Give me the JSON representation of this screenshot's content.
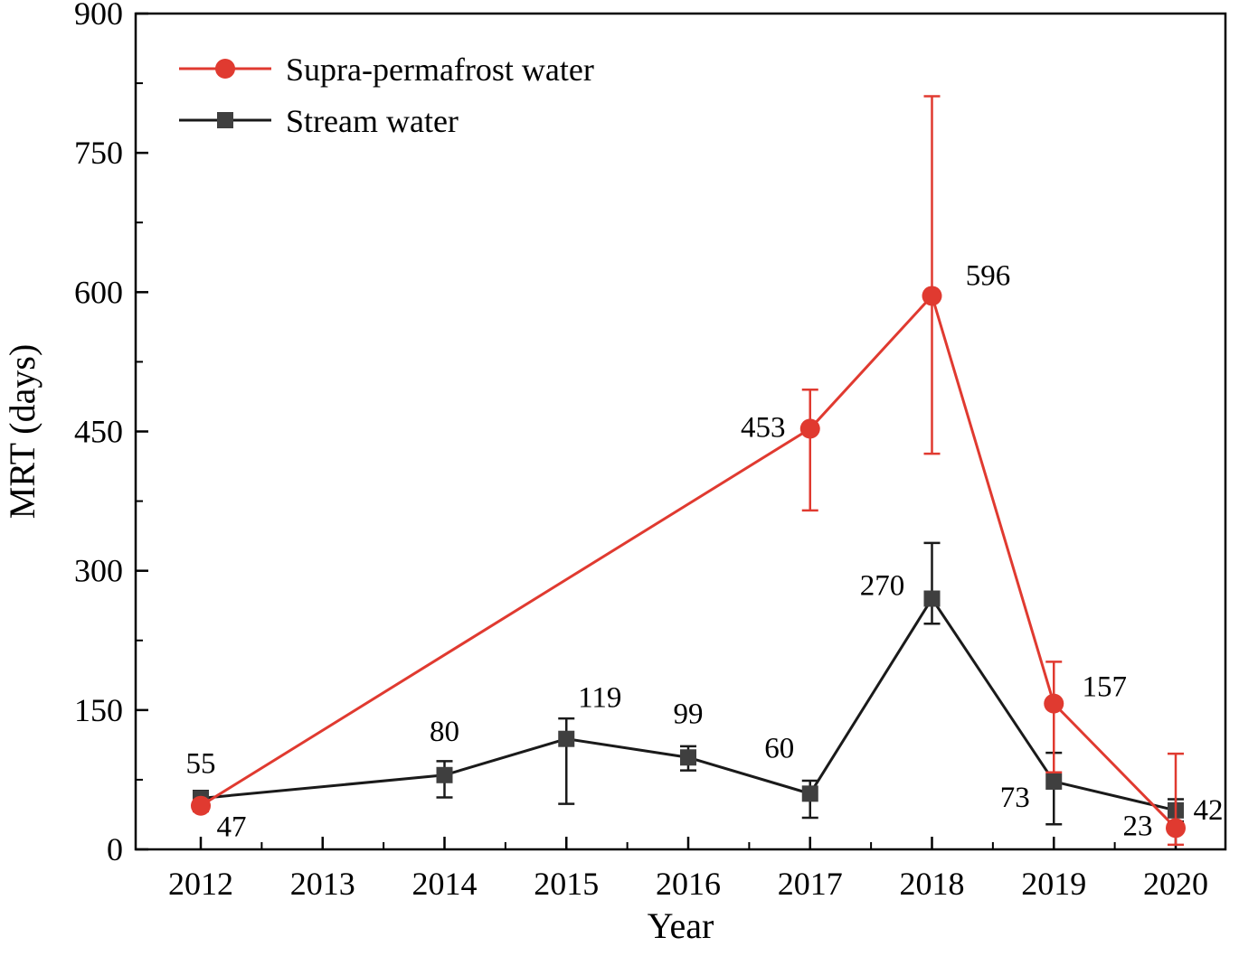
{
  "chart_data": {
    "type": "line",
    "title": "",
    "xlabel": "Year",
    "ylabel": "MRT (days)",
    "x_categories": [
      "2012",
      "2013",
      "2014",
      "2015",
      "2016",
      "2017",
      "2018",
      "2019",
      "2020"
    ],
    "ylim": [
      0,
      900
    ],
    "y_major_ticks": [
      0,
      150,
      300,
      450,
      600,
      750,
      900
    ],
    "y_minor_ticks": [
      75,
      225,
      375,
      525,
      675,
      825
    ],
    "grid": false,
    "legend_position": "top-left-inside",
    "colors": {
      "supra_red": "#e03a30",
      "stream_line": "#1a1a1a",
      "stream_marker": "#3f3f3f",
      "axis": "#000000"
    },
    "series": [
      {
        "name": "Supra-permafrost water",
        "marker": "circle",
        "color": "#e03a30",
        "marker_color": "#e03a30",
        "points": [
          {
            "x": "2012",
            "y": 47,
            "err_up": 6,
            "err_down": 6,
            "label": "47",
            "label_dx": 34,
            "label_dy": 34
          },
          {
            "x": "2017",
            "y": 453,
            "err_up": 42,
            "err_down": 88,
            "label": "453",
            "label_dx": -52,
            "label_dy": 9
          },
          {
            "x": "2018",
            "y": 596,
            "err_up": 215,
            "err_down": 170,
            "label": "596",
            "label_dx": 62,
            "label_dy": -12
          },
          {
            "x": "2019",
            "y": 157,
            "err_up": 45,
            "err_down": 74,
            "label": "157",
            "label_dx": 56,
            "label_dy": -8
          },
          {
            "x": "2020",
            "y": 23,
            "err_up": 80,
            "err_down": 18,
            "label": "23",
            "label_dx": -42,
            "label_dy": 8
          }
        ]
      },
      {
        "name": "Stream water",
        "marker": "square",
        "color": "#1a1a1a",
        "marker_color": "#3f3f3f",
        "points": [
          {
            "x": "2012",
            "y": 55,
            "err_up": 8,
            "err_down": 8,
            "label": "55",
            "label_dx": 0,
            "label_dy": -28
          },
          {
            "x": "2014",
            "y": 80,
            "err_up": 15,
            "err_down": 24,
            "label": "80",
            "label_dx": 0,
            "label_dy": -38
          },
          {
            "x": "2015",
            "y": 119,
            "err_up": 22,
            "err_down": 70,
            "label": "119",
            "label_dx": 37,
            "label_dy": -35
          },
          {
            "x": "2016",
            "y": 99,
            "err_up": 12,
            "err_down": 14,
            "label": "99",
            "label_dx": 0,
            "label_dy": -38
          },
          {
            "x": "2017",
            "y": 60,
            "err_up": 14,
            "err_down": 26,
            "label": "60",
            "label_dx": -34,
            "label_dy": -40
          },
          {
            "x": "2018",
            "y": 270,
            "err_up": 60,
            "err_down": 27,
            "label": "270",
            "label_dx": -55,
            "label_dy": -4
          },
          {
            "x": "2019",
            "y": 73,
            "err_up": 31,
            "err_down": 46,
            "label": "73",
            "label_dx": -43,
            "label_dy": 28
          },
          {
            "x": "2020",
            "y": 42,
            "err_up": 12,
            "err_down": 12,
            "label": "42",
            "label_dx": 36,
            "label_dy": 10
          }
        ]
      }
    ]
  }
}
